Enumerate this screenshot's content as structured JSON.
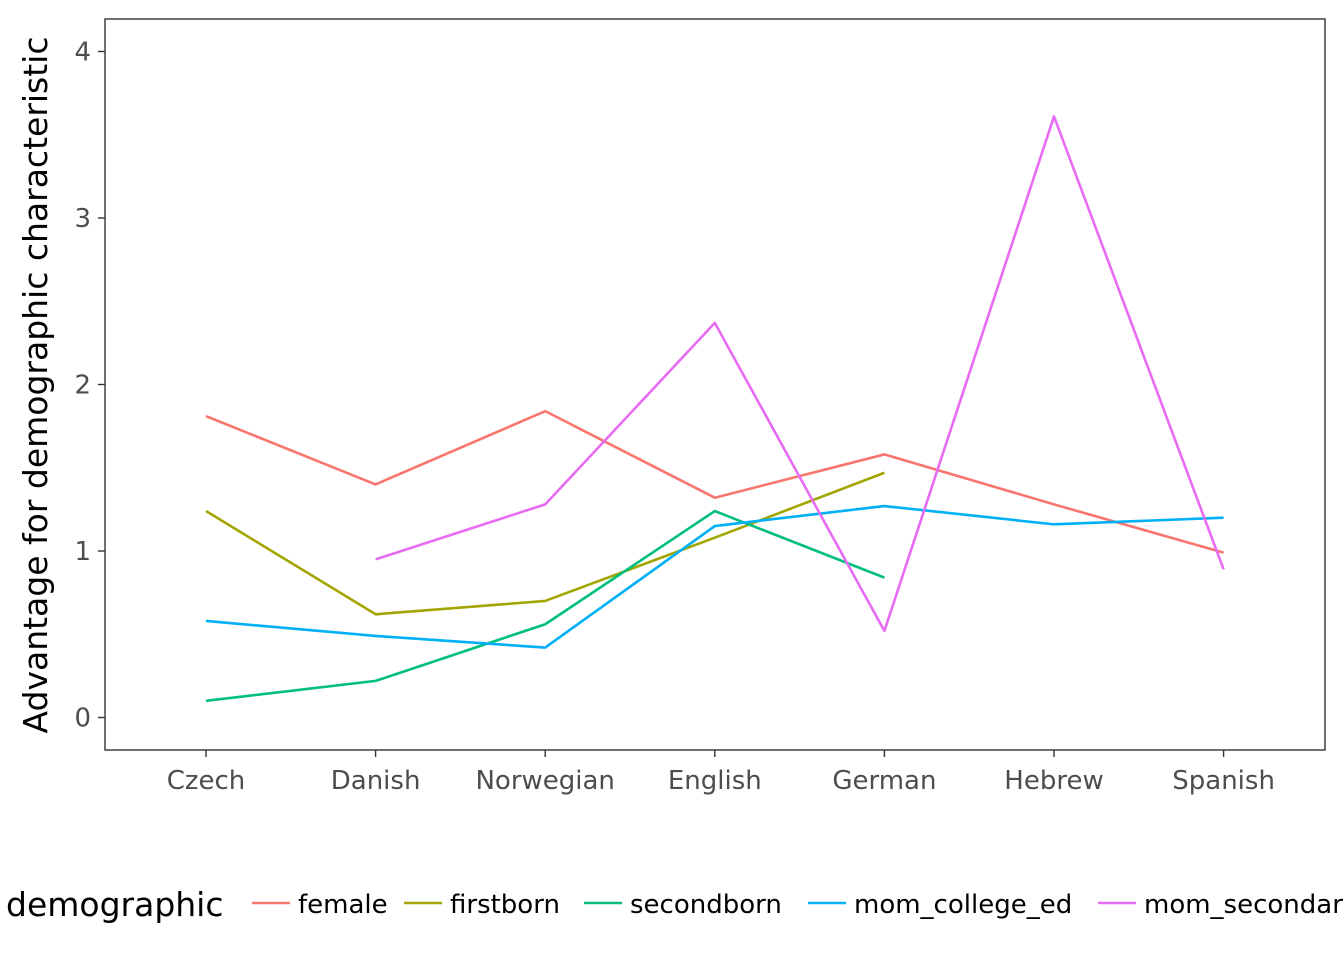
{
  "chart_data": {
    "type": "line",
    "title": "",
    "xlabel": "",
    "ylabel": "Advantage for demographic characteristic",
    "categories": [
      "Czech",
      "Danish",
      "Norwegian",
      "English",
      "German",
      "Hebrew",
      "Spanish"
    ],
    "ylim": [
      -0.2,
      4.2
    ],
    "yticks": [
      0,
      1,
      2,
      3,
      4
    ],
    "ytick_labels": [
      "0",
      "1",
      "2",
      "3",
      "4"
    ],
    "grid": false,
    "legend": {
      "title": "demographic",
      "placement": "bottom"
    },
    "series": [
      {
        "name": "female",
        "color": "#F8766D",
        "values": [
          1.81,
          1.4,
          1.84,
          1.32,
          1.58,
          1.28,
          0.99
        ]
      },
      {
        "name": "firstborn",
        "color": "#A3A500",
        "values": [
          1.24,
          0.62,
          0.7,
          1.08,
          1.47,
          null,
          null
        ]
      },
      {
        "name": "secondborn",
        "color": "#00BF7D",
        "values": [
          0.1,
          0.22,
          0.56,
          1.24,
          0.84,
          null,
          null
        ]
      },
      {
        "name": "mom_college_ed",
        "color": "#00B0F6",
        "values": [
          0.58,
          0.49,
          0.42,
          1.15,
          1.27,
          1.16,
          1.2
        ]
      },
      {
        "name": "mom_secondary_ed",
        "color": "#E76BF3",
        "values": [
          null,
          0.95,
          1.28,
          2.37,
          0.52,
          3.61,
          0.89
        ]
      }
    ]
  }
}
